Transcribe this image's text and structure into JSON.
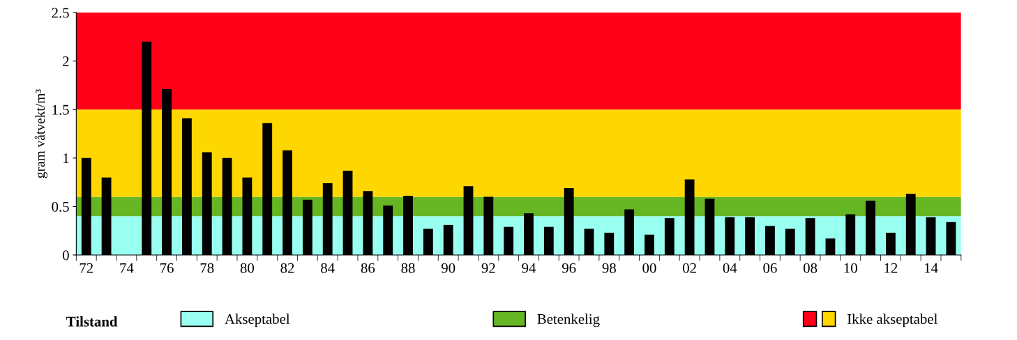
{
  "chart_data": {
    "type": "bar",
    "ylabel": "gram våtvekt/m³",
    "legend_title": "Tilstand",
    "categories": [
      "72",
      null,
      "74",
      null,
      "76",
      null,
      "78",
      null,
      "80",
      null,
      "82",
      null,
      "84",
      null,
      "86",
      null,
      "88",
      null,
      "90",
      null,
      "92",
      null,
      "94",
      null,
      "96",
      null,
      "98",
      null,
      "00",
      null,
      "02",
      null,
      "04",
      null,
      "06",
      null,
      "08",
      null,
      "10",
      null,
      "12",
      null,
      "14",
      null
    ],
    "values": [
      1.0,
      0.8,
      null,
      2.2,
      1.71,
      1.41,
      1.06,
      1.0,
      0.8,
      1.36,
      1.08,
      0.57,
      0.74,
      0.87,
      0.66,
      0.51,
      0.61,
      0.27,
      0.31,
      0.71,
      0.6,
      0.29,
      0.43,
      0.29,
      0.69,
      0.27,
      0.23,
      0.47,
      0.21,
      0.38,
      0.78,
      0.58,
      0.39,
      0.39,
      0.3,
      0.27,
      0.38,
      0.17,
      0.42,
      0.56,
      0.23,
      0.63,
      0.39,
      0.34
    ],
    "color": "#000000",
    "ylim": [
      0,
      2.5
    ],
    "yticks": [
      0,
      0.5,
      1,
      1.5,
      2,
      2.5
    ],
    "bands": [
      {
        "axis": "y",
        "from": 0,
        "to": 0.4,
        "label": "Akseptabel",
        "color": "#99fff0"
      },
      {
        "axis": "y",
        "from": 0.4,
        "to": 0.6,
        "label": "Betenkelig",
        "color": "#66b522"
      },
      {
        "axis": "y",
        "from": 0.6,
        "to": 1.5,
        "label": "Ikke akseptabel",
        "color": "#ffd700"
      },
      {
        "axis": "y",
        "from": 1.5,
        "to": 2.5,
        "label": null,
        "color": "#ff0019"
      }
    ],
    "grid": false,
    "legend": "bottom"
  }
}
